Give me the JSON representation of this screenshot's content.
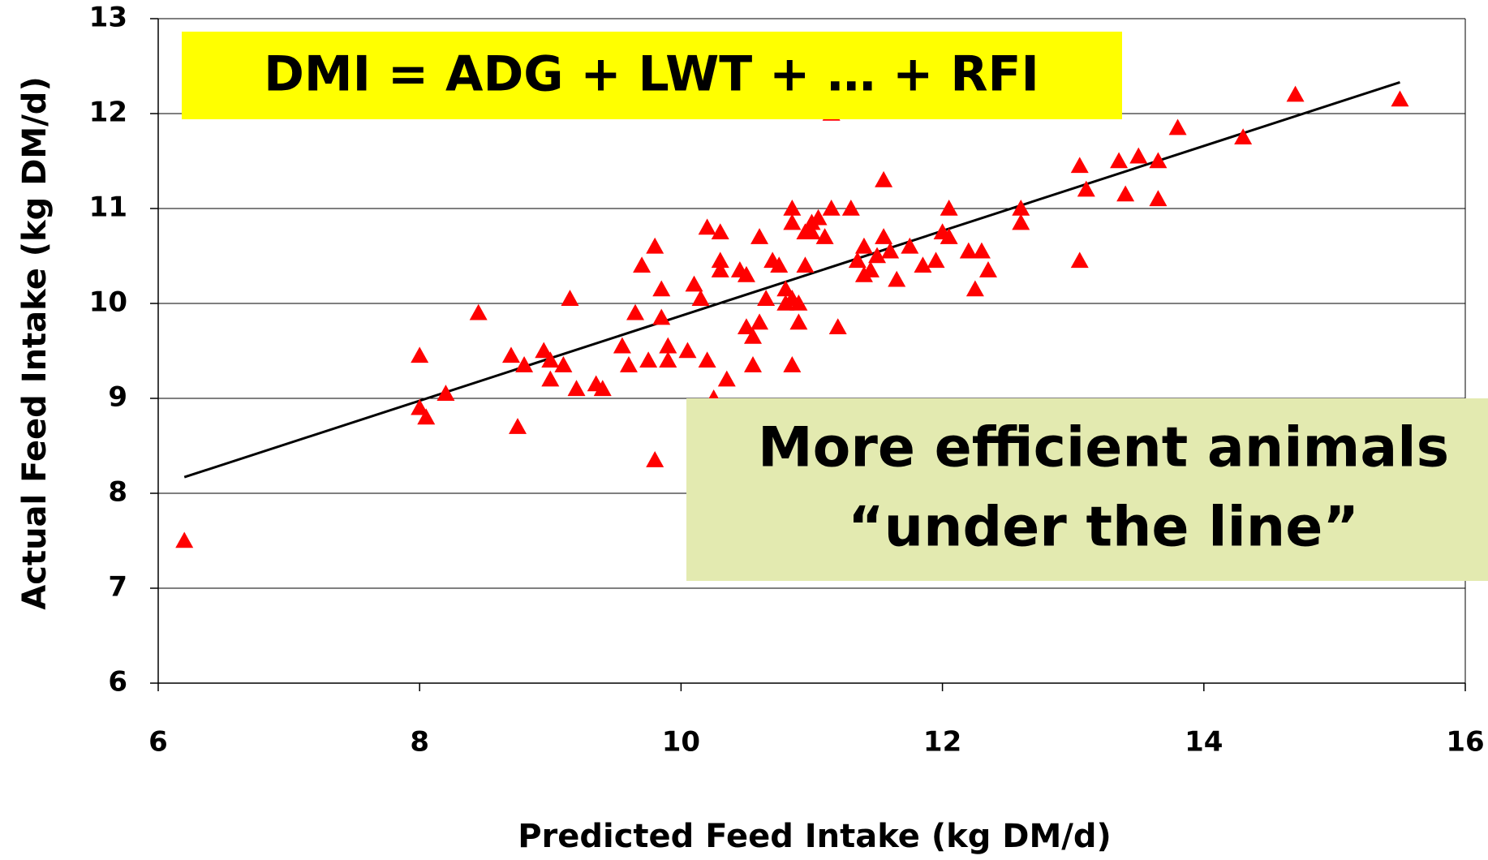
{
  "chart_data": {
    "type": "scatter",
    "x_label": "Predicted Feed Intake (kg DM/d)",
    "y_label": "Actual Feed Intake (kg DM/d)",
    "annotations": [
      "DMI = ADG + LWT + … + RFI",
      "More efficient animals",
      "“under the line”"
    ],
    "xlim": [
      6,
      16
    ],
    "xticks": [
      6,
      8,
      10,
      12,
      14,
      16
    ],
    "ylim": [
      6,
      13
    ],
    "yticks": [
      6,
      7,
      8,
      9,
      10,
      11,
      12,
      13
    ],
    "grid": true,
    "points": {
      "color": "#ff0000",
      "x": [
        6.2,
        8.0,
        8.0,
        8.05,
        8.2,
        8.45,
        8.7,
        8.75,
        8.8,
        8.95,
        9.0,
        9.0,
        9.1,
        9.15,
        9.2,
        9.35,
        9.4,
        9.55,
        9.6,
        9.65,
        9.7,
        9.75,
        9.8,
        9.8,
        9.85,
        9.85,
        9.9,
        9.9,
        10.05,
        10.1,
        10.15,
        10.2,
        10.2,
        10.25,
        10.3,
        10.3,
        10.3,
        10.35,
        10.45,
        10.5,
        10.5,
        10.55,
        10.55,
        10.6,
        10.6,
        10.65,
        10.7,
        10.75,
        10.8,
        10.8,
        10.85,
        10.85,
        10.85,
        10.85,
        10.9,
        10.9,
        10.95,
        10.95,
        11.0,
        11.0,
        11.05,
        11.1,
        11.15,
        11.15,
        11.2,
        11.3,
        11.35,
        11.4,
        11.4,
        11.45,
        11.5,
        11.55,
        11.55,
        11.6,
        11.65,
        11.75,
        11.85,
        11.95,
        12.0,
        12.05,
        12.05,
        12.2,
        12.25,
        12.3,
        12.35,
        12.6,
        12.6,
        13.05,
        13.05,
        13.1,
        13.35,
        13.4,
        13.5,
        13.65,
        13.65,
        13.8,
        14.3,
        14.7,
        15.5
      ],
      "y": [
        7.5,
        9.45,
        8.9,
        8.8,
        9.05,
        9.9,
        9.45,
        8.7,
        9.35,
        9.5,
        9.4,
        9.2,
        9.35,
        10.05,
        9.1,
        9.15,
        9.1,
        9.55,
        9.35,
        9.9,
        10.4,
        9.4,
        10.6,
        8.35,
        10.15,
        9.85,
        9.4,
        9.55,
        9.5,
        10.2,
        10.05,
        9.4,
        10.8,
        9.0,
        10.75,
        10.45,
        10.35,
        9.2,
        10.35,
        10.3,
        9.75,
        9.65,
        9.35,
        10.7,
        9.8,
        10.05,
        10.45,
        10.4,
        10.0,
        10.15,
        9.35,
        10.05,
        10.85,
        11.0,
        10.0,
        9.8,
        10.75,
        10.4,
        10.85,
        10.75,
        10.9,
        10.7,
        11.0,
        12.0,
        9.75,
        11.0,
        10.45,
        10.6,
        10.3,
        10.35,
        10.5,
        10.7,
        11.3,
        10.55,
        10.25,
        10.6,
        10.4,
        10.45,
        10.75,
        10.7,
        11.0,
        10.55,
        10.15,
        10.55,
        10.35,
        11.0,
        10.85,
        11.45,
        10.45,
        11.2,
        11.5,
        11.15,
        11.55,
        11.5,
        11.1,
        11.85,
        11.75,
        12.2,
        12.15
      ]
    },
    "trend": {
      "color": "#000000",
      "x": [
        6.2,
        15.5
      ],
      "y": [
        8.17,
        12.33
      ]
    }
  }
}
